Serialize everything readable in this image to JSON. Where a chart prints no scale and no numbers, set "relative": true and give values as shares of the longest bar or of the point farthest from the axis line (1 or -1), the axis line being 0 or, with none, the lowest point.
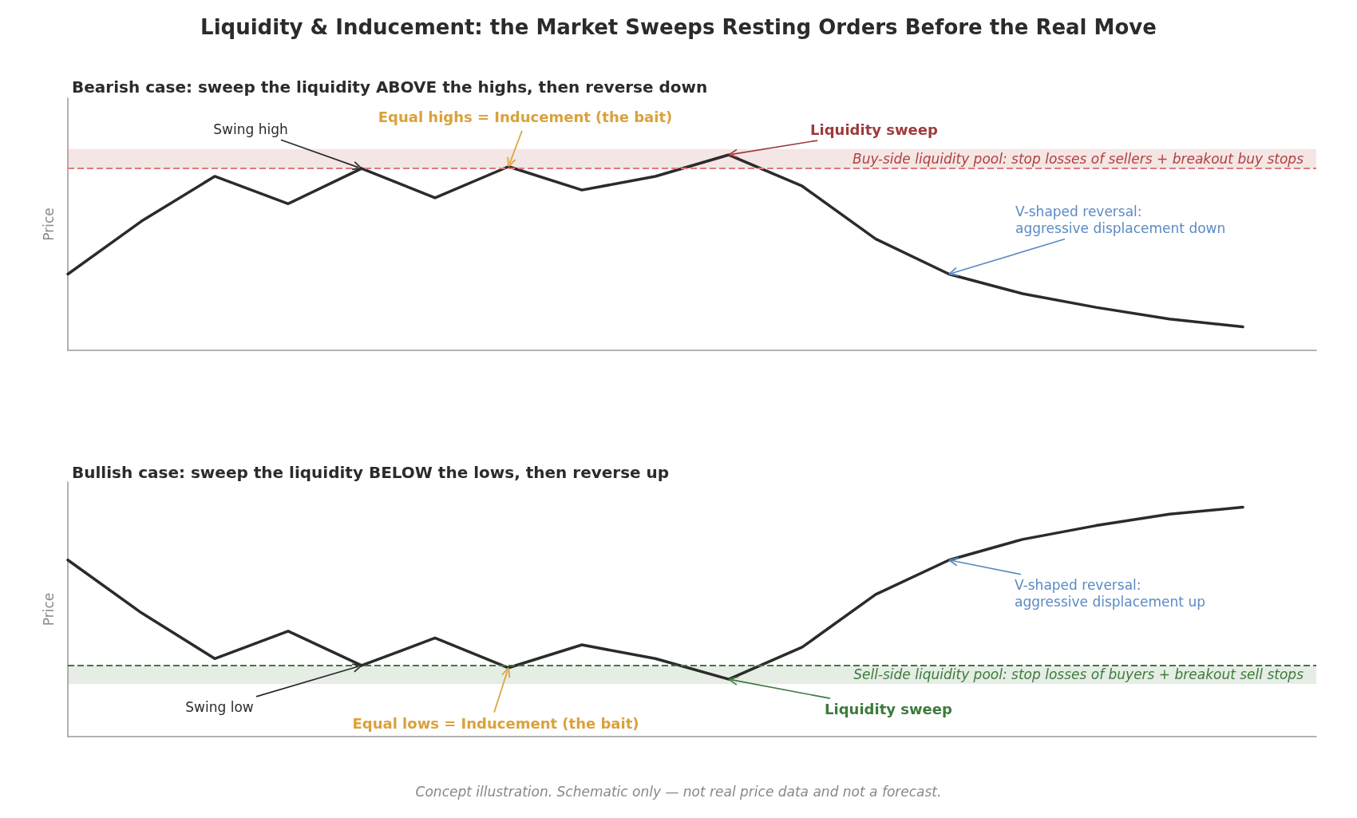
{
  "chart_data": [
    {
      "type": "line",
      "title": "Liquidity & Inducement: the Market Sweeps Resting Orders Before the Real Move",
      "subtitle": "Bearish case: sweep the liquidity ABOVE the highs, then reverse down",
      "ylabel": "Price",
      "relative": true,
      "grid": false,
      "marker": "none",
      "line_style": "solid",
      "categories": [
        null,
        null,
        null,
        null,
        null,
        null,
        null,
        null,
        null,
        null,
        null,
        null,
        null,
        null,
        null,
        null,
        null,
        null
      ],
      "series": [
        {
          "color": "#2b2b2b",
          "values": [
            0.39,
            0.66,
            0.89,
            0.75,
            0.93,
            0.78,
            0.94,
            0.82,
            0.89,
            1,
            0.84,
            0.57,
            0.39,
            0.29,
            0.22,
            0.16,
            0.12,
            null
          ]
        }
      ],
      "ref_lines": [
        {
          "axis": "y",
          "value": 0.93,
          "color": "#e07a7a",
          "line_style": "dashed"
        }
      ],
      "bands": [
        {
          "axis": "y",
          "from": 0.93,
          "to": 1.03,
          "label": "Buy-side liquidity pool: stop losses of sellers + breakout buy stops",
          "color": "#b0403d"
        }
      ],
      "annotations": [
        "Swing high",
        "Equal highs = Inducement (the bait)",
        "Liquidity sweep",
        "V-shaped reversal:\naggressive displacement down"
      ]
    },
    {
      "type": "line",
      "title": "Bullish case: sweep the liquidity BELOW the lows, then reverse up",
      "ylabel": "Price",
      "relative": true,
      "grid": false,
      "marker": "none",
      "line_style": "solid",
      "categories": [
        null,
        null,
        null,
        null,
        null,
        null,
        null,
        null,
        null,
        null,
        null,
        null,
        null,
        null,
        null,
        null,
        null,
        null
      ],
      "series": [
        {
          "color": "#2b2b2b",
          "values": [
            0.77,
            0.54,
            0.34,
            0.46,
            0.31,
            0.43,
            0.3,
            0.4,
            0.34,
            0.25,
            0.39,
            0.62,
            0.77,
            0.86,
            0.92,
            0.97,
            1,
            null
          ]
        }
      ],
      "ref_lines": [
        {
          "axis": "y",
          "value": 0.31,
          "color": "#3d7a3d",
          "line_style": "dashed"
        }
      ],
      "bands": [
        {
          "axis": "y",
          "from": 0.23,
          "to": 0.31,
          "label": "Sell-side liquidity pool: stop losses of buyers + breakout sell stops",
          "color": "#3d7a3d"
        }
      ],
      "annotations": [
        "Swing low",
        "Equal lows = Inducement (the bait)",
        "Liquidity sweep",
        "V-shaped reversal:\naggressive displacement up",
        "Concept illustration. Schematic only — not real price data and not a forecast."
      ]
    }
  ]
}
